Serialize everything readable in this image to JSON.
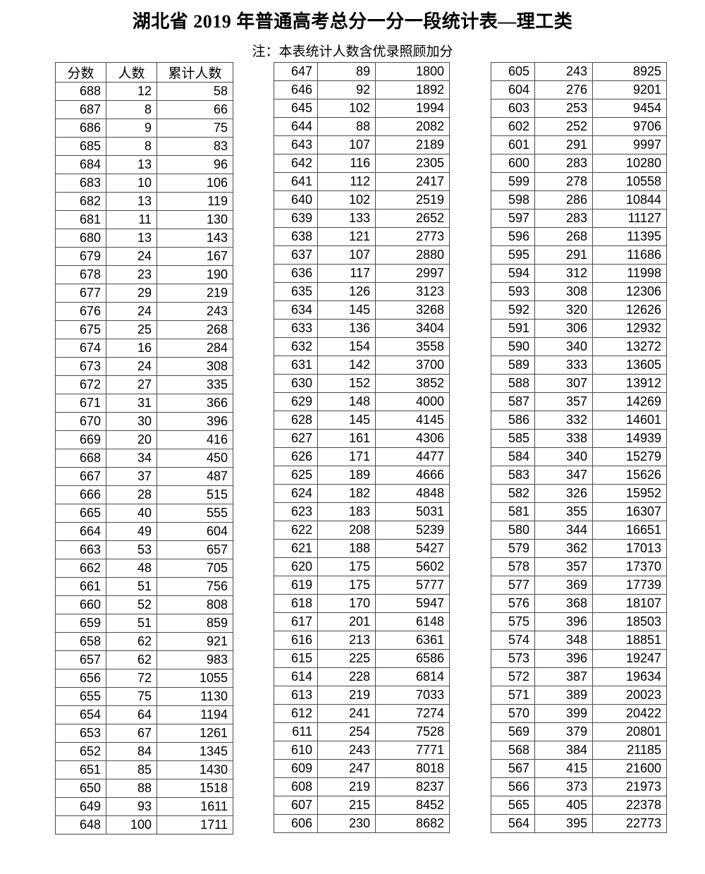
{
  "page": {
    "title": "湖北省 2019 年普通高考总分一分一段统计表—理工类",
    "note": "注：本表统计人数含优录照顾加分"
  },
  "table": {
    "headers": [
      "分数",
      "人数",
      "累计人数"
    ],
    "col1_rows": [
      [
        688,
        12,
        58
      ],
      [
        687,
        8,
        66
      ],
      [
        686,
        9,
        75
      ],
      [
        685,
        8,
        83
      ],
      [
        684,
        13,
        96
      ],
      [
        683,
        10,
        106
      ],
      [
        682,
        13,
        119
      ],
      [
        681,
        11,
        130
      ],
      [
        680,
        13,
        143
      ],
      [
        679,
        24,
        167
      ],
      [
        678,
        23,
        190
      ],
      [
        677,
        29,
        219
      ],
      [
        676,
        24,
        243
      ],
      [
        675,
        25,
        268
      ],
      [
        674,
        16,
        284
      ],
      [
        673,
        24,
        308
      ],
      [
        672,
        27,
        335
      ],
      [
        671,
        31,
        366
      ],
      [
        670,
        30,
        396
      ],
      [
        669,
        20,
        416
      ],
      [
        668,
        34,
        450
      ],
      [
        667,
        37,
        487
      ],
      [
        666,
        28,
        515
      ],
      [
        665,
        40,
        555
      ],
      [
        664,
        49,
        604
      ],
      [
        663,
        53,
        657
      ],
      [
        662,
        48,
        705
      ],
      [
        661,
        51,
        756
      ],
      [
        660,
        52,
        808
      ],
      [
        659,
        51,
        859
      ],
      [
        658,
        62,
        921
      ],
      [
        657,
        62,
        983
      ],
      [
        656,
        72,
        1055
      ],
      [
        655,
        75,
        1130
      ],
      [
        654,
        64,
        1194
      ],
      [
        653,
        67,
        1261
      ],
      [
        652,
        84,
        1345
      ],
      [
        651,
        85,
        1430
      ],
      [
        650,
        88,
        1518
      ],
      [
        649,
        93,
        1611
      ],
      [
        648,
        100,
        1711
      ]
    ],
    "col2_rows": [
      [
        647,
        89,
        1800
      ],
      [
        646,
        92,
        1892
      ],
      [
        645,
        102,
        1994
      ],
      [
        644,
        88,
        2082
      ],
      [
        643,
        107,
        2189
      ],
      [
        642,
        116,
        2305
      ],
      [
        641,
        112,
        2417
      ],
      [
        640,
        102,
        2519
      ],
      [
        639,
        133,
        2652
      ],
      [
        638,
        121,
        2773
      ],
      [
        637,
        107,
        2880
      ],
      [
        636,
        117,
        2997
      ],
      [
        635,
        126,
        3123
      ],
      [
        634,
        145,
        3268
      ],
      [
        633,
        136,
        3404
      ],
      [
        632,
        154,
        3558
      ],
      [
        631,
        142,
        3700
      ],
      [
        630,
        152,
        3852
      ],
      [
        629,
        148,
        4000
      ],
      [
        628,
        145,
        4145
      ],
      [
        627,
        161,
        4306
      ],
      [
        626,
        171,
        4477
      ],
      [
        625,
        189,
        4666
      ],
      [
        624,
        182,
        4848
      ],
      [
        623,
        183,
        5031
      ],
      [
        622,
        208,
        5239
      ],
      [
        621,
        188,
        5427
      ],
      [
        620,
        175,
        5602
      ],
      [
        619,
        175,
        5777
      ],
      [
        618,
        170,
        5947
      ],
      [
        617,
        201,
        6148
      ],
      [
        616,
        213,
        6361
      ],
      [
        615,
        225,
        6586
      ],
      [
        614,
        228,
        6814
      ],
      [
        613,
        219,
        7033
      ],
      [
        612,
        241,
        7274
      ],
      [
        611,
        254,
        7528
      ],
      [
        610,
        243,
        7771
      ],
      [
        609,
        247,
        8018
      ],
      [
        608,
        219,
        8237
      ],
      [
        607,
        215,
        8452
      ],
      [
        606,
        230,
        8682
      ]
    ],
    "col3_rows": [
      [
        605,
        243,
        8925
      ],
      [
        604,
        276,
        9201
      ],
      [
        603,
        253,
        9454
      ],
      [
        602,
        252,
        9706
      ],
      [
        601,
        291,
        9997
      ],
      [
        600,
        283,
        10280
      ],
      [
        599,
        278,
        10558
      ],
      [
        598,
        286,
        10844
      ],
      [
        597,
        283,
        11127
      ],
      [
        596,
        268,
        11395
      ],
      [
        595,
        291,
        11686
      ],
      [
        594,
        312,
        11998
      ],
      [
        593,
        308,
        12306
      ],
      [
        592,
        320,
        12626
      ],
      [
        591,
        306,
        12932
      ],
      [
        590,
        340,
        13272
      ],
      [
        589,
        333,
        13605
      ],
      [
        588,
        307,
        13912
      ],
      [
        587,
        357,
        14269
      ],
      [
        586,
        332,
        14601
      ],
      [
        585,
        338,
        14939
      ],
      [
        584,
        340,
        15279
      ],
      [
        583,
        347,
        15626
      ],
      [
        582,
        326,
        15952
      ],
      [
        581,
        355,
        16307
      ],
      [
        580,
        344,
        16651
      ],
      [
        579,
        362,
        17013
      ],
      [
        578,
        357,
        17370
      ],
      [
        577,
        369,
        17739
      ],
      [
        576,
        368,
        18107
      ],
      [
        575,
        396,
        18503
      ],
      [
        574,
        348,
        18851
      ],
      [
        573,
        396,
        19247
      ],
      [
        572,
        387,
        19634
      ],
      [
        571,
        389,
        20023
      ],
      [
        570,
        399,
        20422
      ],
      [
        569,
        379,
        20801
      ],
      [
        568,
        384,
        21185
      ],
      [
        567,
        415,
        21600
      ],
      [
        566,
        373,
        21973
      ],
      [
        565,
        405,
        22378
      ],
      [
        564,
        395,
        22773
      ]
    ]
  }
}
